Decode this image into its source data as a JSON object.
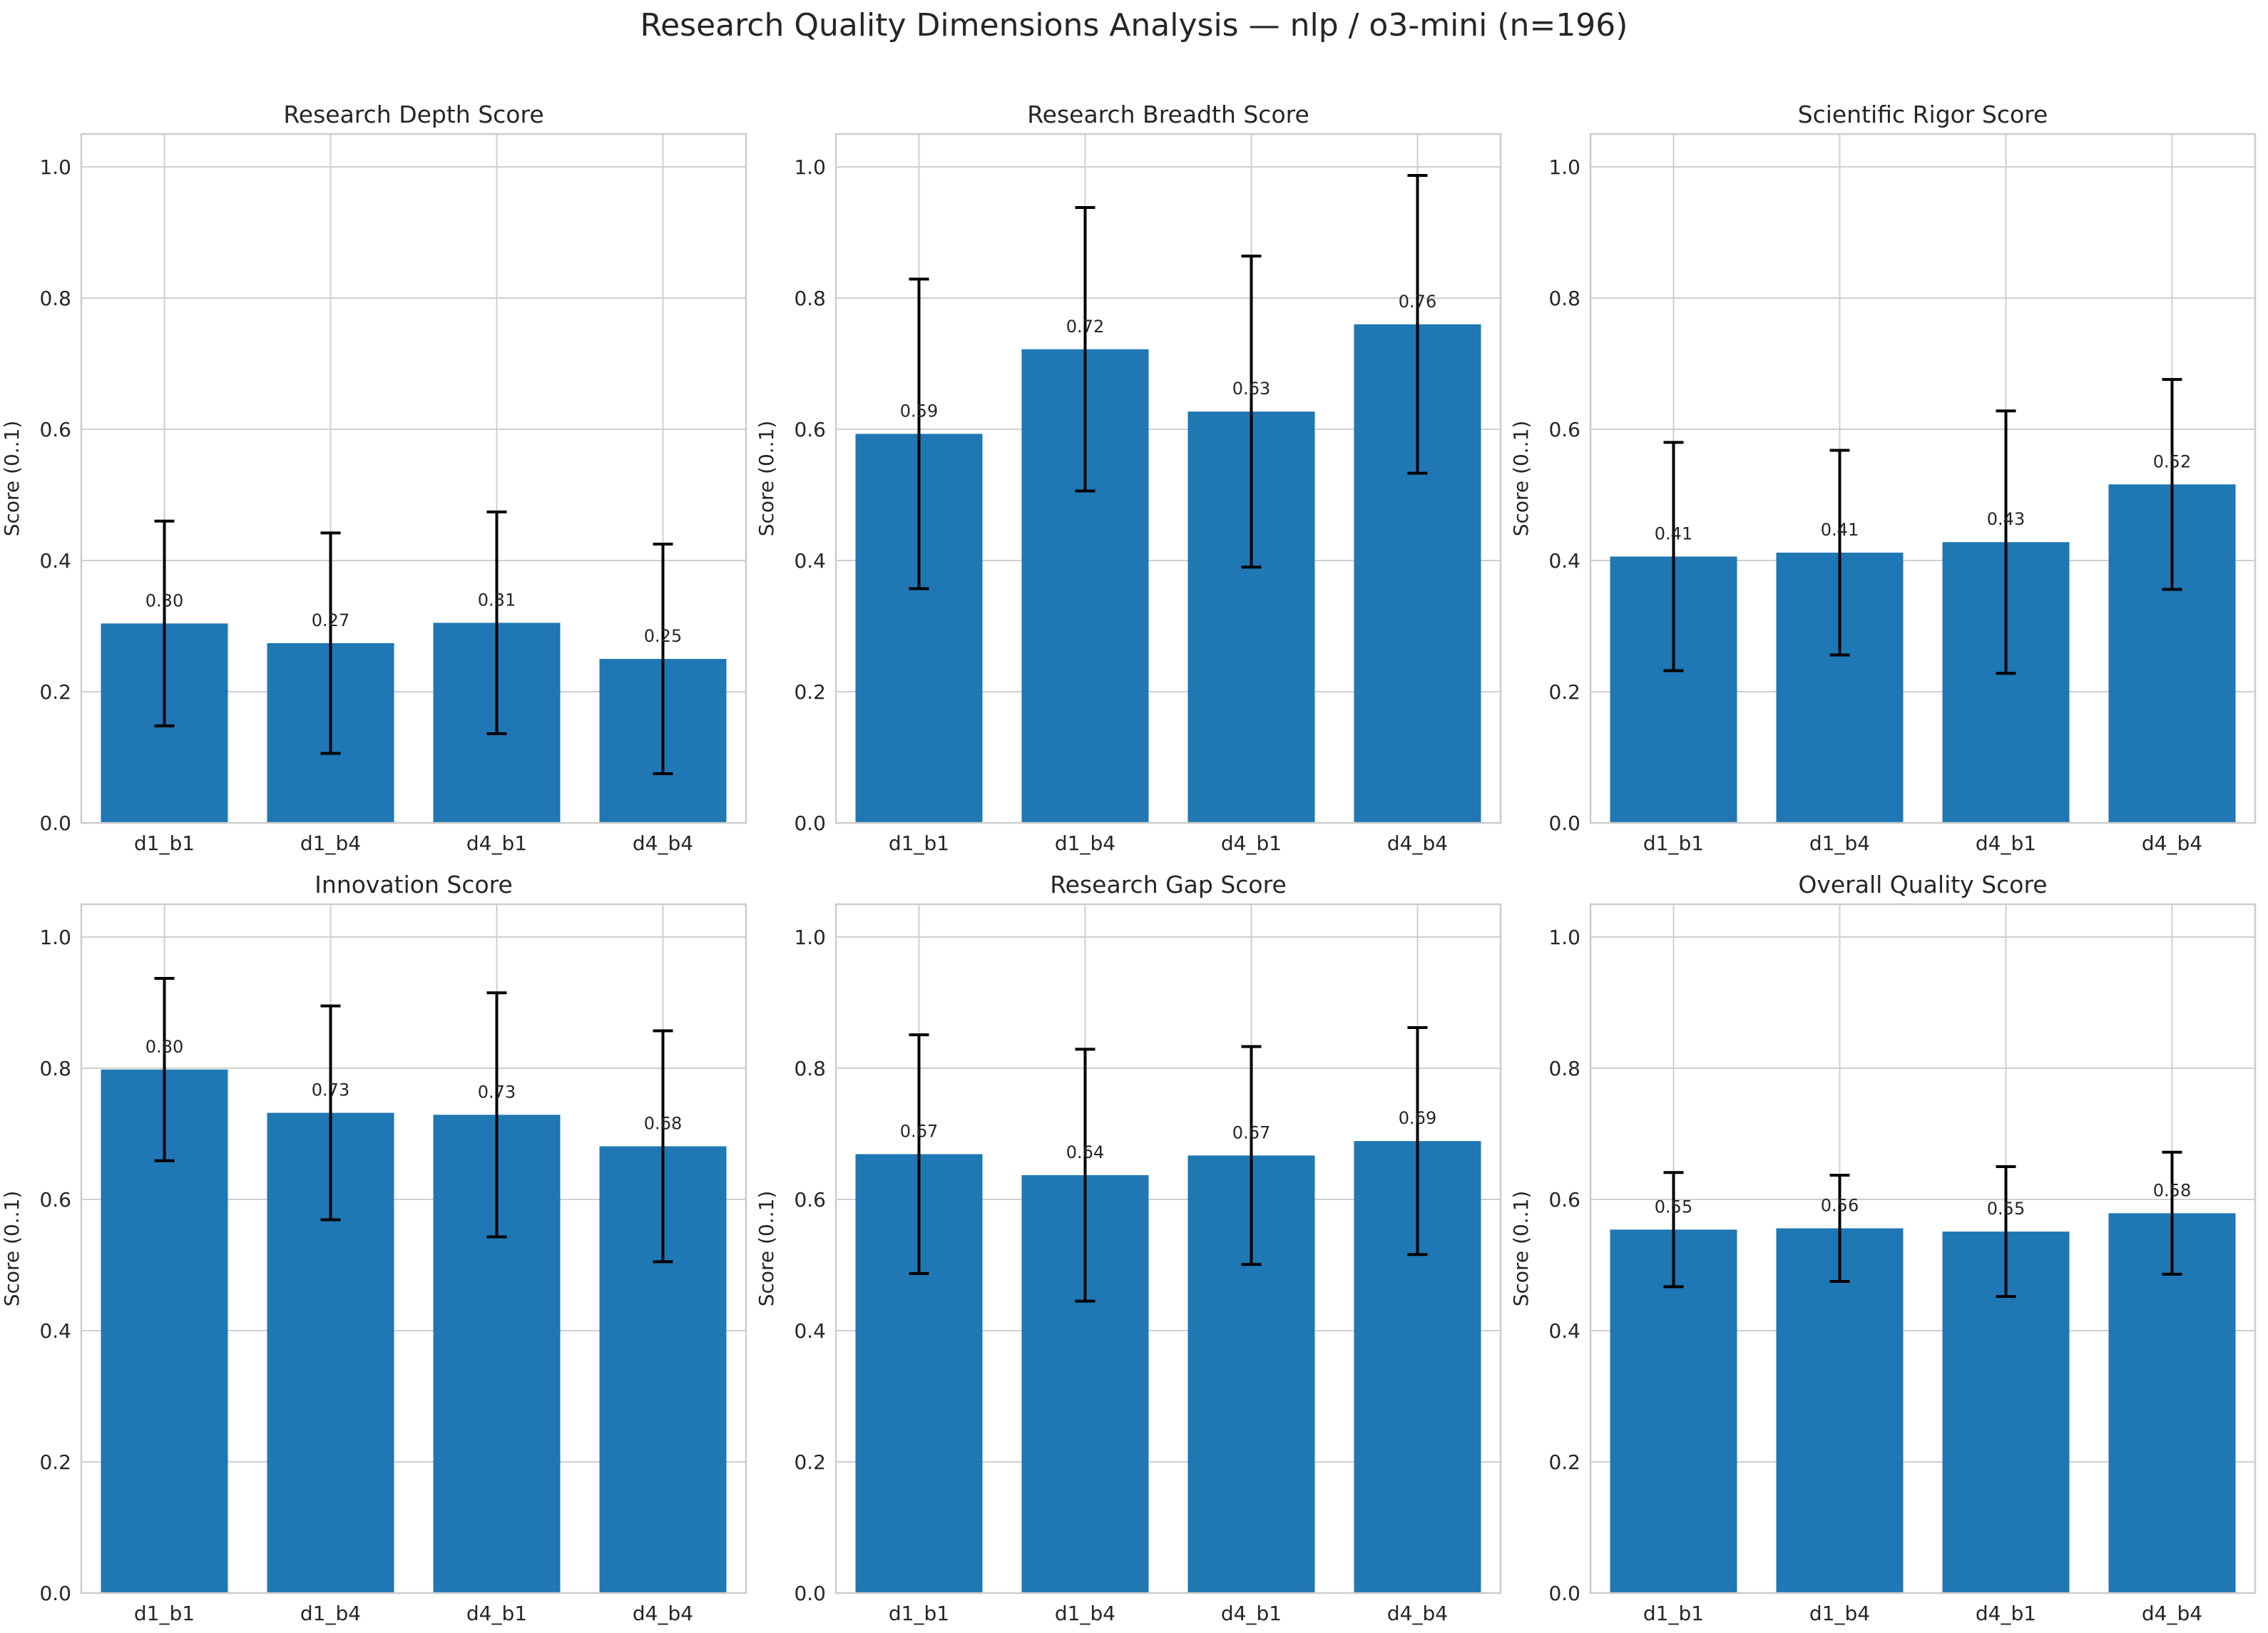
{
  "figure": {
    "title": "Research Quality Dimensions Analysis — nlp / o3-mini (n=196)"
  },
  "colors": {
    "bar": "#1f77b4",
    "grid": "#cfcfcf",
    "frame": "#cccccc",
    "text": "#262626",
    "errorbar": "#000000"
  },
  "chart_data": [
    {
      "type": "bar",
      "title": "Research Depth Score",
      "xlabel": "",
      "ylabel": "Score (0..1)",
      "ylim": [
        0,
        1.05
      ],
      "yticks": [
        "0.0",
        "0.2",
        "0.4",
        "0.6",
        "0.8",
        "1.0"
      ],
      "grid": true,
      "categories": [
        "d1_b1",
        "d1_b4",
        "d4_b1",
        "d4_b4"
      ],
      "values": [
        0.304,
        0.274,
        0.305,
        0.25
      ],
      "errors": [
        0.156,
        0.168,
        0.169,
        0.175
      ],
      "data_labels": [
        "0.30",
        "0.27",
        "0.31",
        "0.25"
      ]
    },
    {
      "type": "bar",
      "title": "Research Breadth Score",
      "xlabel": "",
      "ylabel": "Score (0..1)",
      "ylim": [
        0,
        1.05
      ],
      "yticks": [
        "0.0",
        "0.2",
        "0.4",
        "0.6",
        "0.8",
        "1.0"
      ],
      "grid": true,
      "categories": [
        "d1_b1",
        "d1_b4",
        "d4_b1",
        "d4_b4"
      ],
      "values": [
        0.593,
        0.722,
        0.627,
        0.76
      ],
      "errors": [
        0.236,
        0.216,
        0.237,
        0.227
      ],
      "data_labels": [
        "0.59",
        "0.72",
        "0.63",
        "0.76"
      ]
    },
    {
      "type": "bar",
      "title": "Scientific Rigor Score",
      "xlabel": "",
      "ylabel": "Score (0..1)",
      "ylim": [
        0,
        1.05
      ],
      "yticks": [
        "0.0",
        "0.2",
        "0.4",
        "0.6",
        "0.8",
        "1.0"
      ],
      "grid": true,
      "categories": [
        "d1_b1",
        "d1_b4",
        "d4_b1",
        "d4_b4"
      ],
      "values": [
        0.406,
        0.412,
        0.428,
        0.516
      ],
      "errors": [
        0.174,
        0.156,
        0.2,
        0.16
      ],
      "data_labels": [
        "0.41",
        "0.41",
        "0.43",
        "0.52"
      ]
    },
    {
      "type": "bar",
      "title": "Innovation Score",
      "xlabel": "",
      "ylabel": "Score (0..1)",
      "ylim": [
        0,
        1.05
      ],
      "yticks": [
        "0.0",
        "0.2",
        "0.4",
        "0.6",
        "0.8",
        "1.0"
      ],
      "grid": true,
      "categories": [
        "d1_b1",
        "d1_b4",
        "d4_b1",
        "d4_b4"
      ],
      "values": [
        0.798,
        0.732,
        0.729,
        0.681
      ],
      "errors": [
        0.139,
        0.163,
        0.186,
        0.176
      ],
      "data_labels": [
        "0.80",
        "0.73",
        "0.73",
        "0.68"
      ]
    },
    {
      "type": "bar",
      "title": "Research Gap Score",
      "xlabel": "",
      "ylabel": "Score (0..1)",
      "ylim": [
        0,
        1.05
      ],
      "yticks": [
        "0.0",
        "0.2",
        "0.4",
        "0.6",
        "0.8",
        "1.0"
      ],
      "grid": true,
      "categories": [
        "d1_b1",
        "d1_b4",
        "d4_b1",
        "d4_b4"
      ],
      "values": [
        0.669,
        0.637,
        0.667,
        0.689
      ],
      "errors": [
        0.182,
        0.192,
        0.166,
        0.173
      ],
      "data_labels": [
        "0.67",
        "0.64",
        "0.67",
        "0.69"
      ]
    },
    {
      "type": "bar",
      "title": "Overall Quality Score",
      "xlabel": "",
      "ylabel": "Score (0..1)",
      "ylim": [
        0,
        1.05
      ],
      "yticks": [
        "0.0",
        "0.2",
        "0.4",
        "0.6",
        "0.8",
        "1.0"
      ],
      "grid": true,
      "categories": [
        "d1_b1",
        "d1_b4",
        "d4_b1",
        "d4_b4"
      ],
      "values": [
        0.554,
        0.556,
        0.551,
        0.579
      ],
      "errors": [
        0.087,
        0.081,
        0.099,
        0.093
      ],
      "data_labels": [
        "0.55",
        "0.56",
        "0.55",
        "0.58"
      ]
    }
  ]
}
